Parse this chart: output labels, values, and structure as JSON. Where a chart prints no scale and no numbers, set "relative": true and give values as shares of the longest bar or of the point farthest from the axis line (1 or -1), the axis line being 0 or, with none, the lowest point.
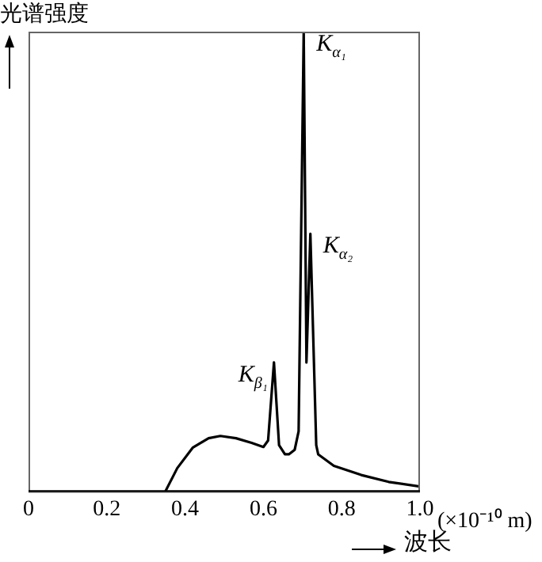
{
  "chart_data": {
    "type": "line",
    "relative": true,
    "ylabel": "光谱强度",
    "xlabel": "波长",
    "x": [
      0.35,
      0.38,
      0.42,
      0.46,
      0.49,
      0.53,
      0.57,
      0.6,
      0.612,
      0.627,
      0.64,
      0.655,
      0.665,
      0.68,
      0.69,
      0.703,
      0.71,
      0.72,
      0.735,
      0.74,
      0.78,
      0.85,
      0.92,
      1.0
    ],
    "series": [
      {
        "color": "#000000",
        "values": [
          0,
          0.05,
          0.095,
          0.115,
          0.12,
          0.115,
          0.105,
          0.096,
          0.11,
          0.28,
          0.1,
          0.08,
          0.08,
          0.09,
          0.13,
          1,
          0.28,
          0.56,
          0.1,
          0.08,
          0.055,
          0.035,
          0.02,
          0.01
        ]
      }
    ],
    "xlim": [
      0,
      1
    ],
    "xticks": [
      0,
      0.2,
      0.4,
      0.6,
      0.8,
      {
        "value": 1,
        "label": "1.0"
      }
    ],
    "grid": false,
    "legend": false,
    "marker": "none",
    "line_style": "solid",
    "annotations": [
      {
        "text": "K$_{α₁}$",
        "x": 0.703,
        "y": 1
      },
      {
        "text": "K$_{α₂}$",
        "x": 0.72,
        "y": 0.56
      },
      {
        "text": "K$_{β₁}$",
        "x": 0.627,
        "y": 0.28
      },
      "(×10⁻¹⁰ m)"
    ]
  }
}
